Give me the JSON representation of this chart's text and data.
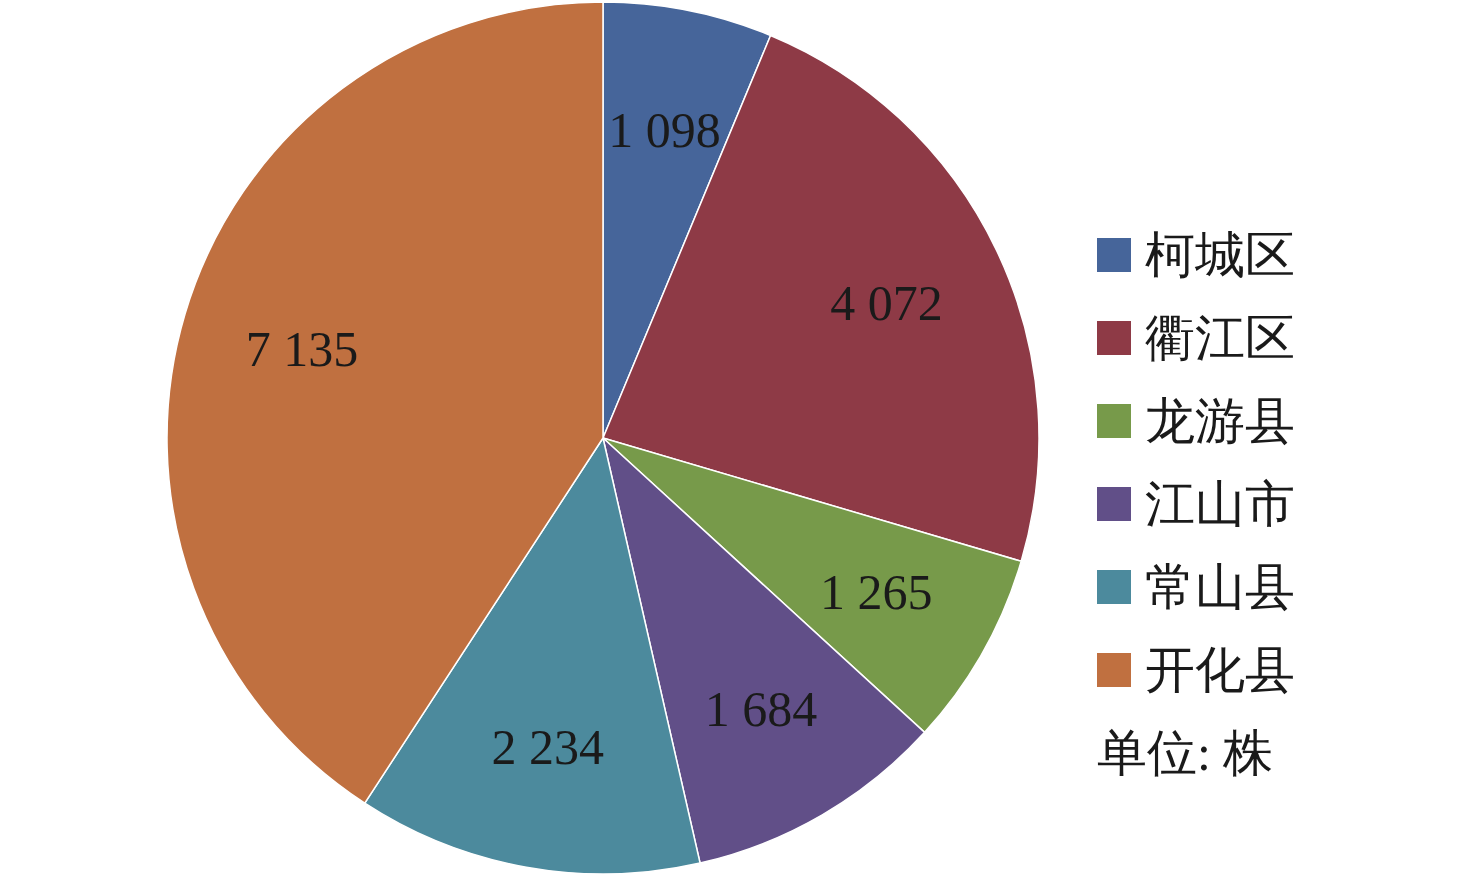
{
  "chart_data": {
    "type": "pie",
    "categories": [
      "柯城区",
      "衢江区",
      "龙游县",
      "江山市",
      "常山县",
      "开化县"
    ],
    "values": [
      1098,
      4072,
      1265,
      1684,
      2234,
      7135
    ],
    "colors": [
      "#46659a",
      "#8e3a46",
      "#779a4a",
      "#614f88",
      "#4c8a9d",
      "#c07040"
    ],
    "value_labels": [
      "1 098",
      "4 072",
      "1 265",
      "1 684",
      "2 234",
      "7 135"
    ],
    "legend": "right",
    "annotations": [
      "单位: 株"
    ]
  }
}
